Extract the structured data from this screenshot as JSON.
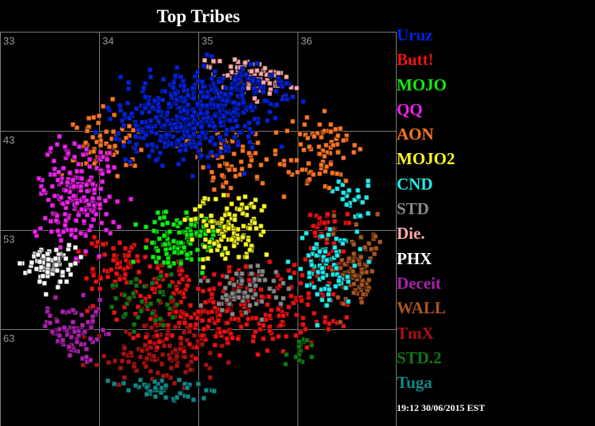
{
  "chart_data": {
    "type": "scatter",
    "title": "Top Tribes",
    "grid": true,
    "legend_placement": "right",
    "x_tick_labels": [
      "33",
      "34",
      "35",
      "36"
    ],
    "y_tick_labels": [
      "43",
      "53",
      "63"
    ],
    "series": [
      {
        "name": "Uruz",
        "color": "#0022dd"
      },
      {
        "name": "Butt!",
        "color": "#ee1111"
      },
      {
        "name": "MOJO",
        "color": "#11ee11"
      },
      {
        "name": "QQ",
        "color": "#ee22ee"
      },
      {
        "name": "AON",
        "color": "#ff7722"
      },
      {
        "name": "MOJO2",
        "color": "#ffff22"
      },
      {
        "name": "CND",
        "color": "#22eeee"
      },
      {
        "name": "STD",
        "color": "#888888"
      },
      {
        "name": "Die.",
        "color": "#ffaaaa"
      },
      {
        "name": "PHX",
        "color": "#ffffff"
      },
      {
        "name": "Deceit",
        "color": "#aa22aa"
      },
      {
        "name": "WALL",
        "color": "#aa5522"
      },
      {
        "name": "TmX",
        "color": "#aa1111"
      },
      {
        "name": "STD.2",
        "color": "#117711"
      },
      {
        "name": "Tuga",
        "color": "#118888"
      }
    ]
  },
  "timestamp": "19:12 30/06/2015 EST"
}
